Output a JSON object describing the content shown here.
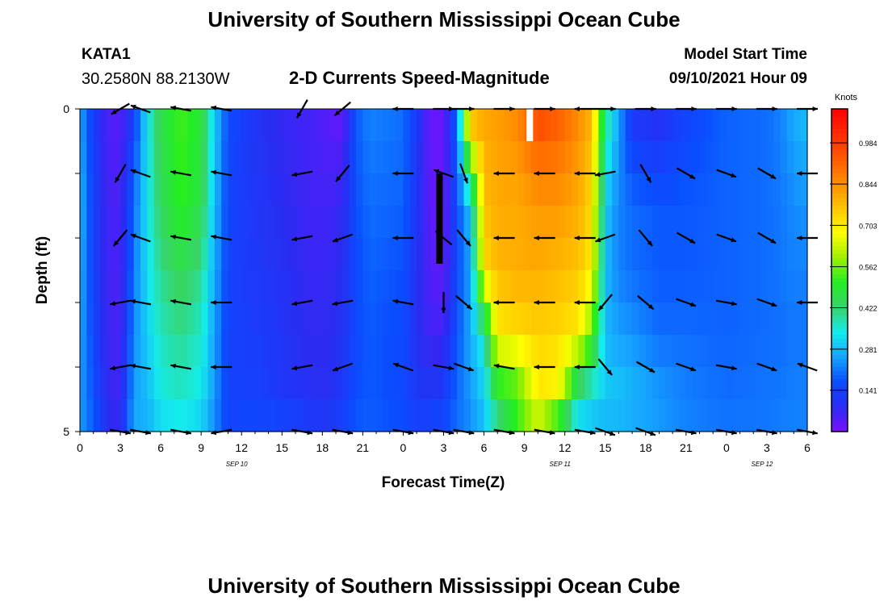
{
  "titles": {
    "top": "University of Southern Mississippi Ocean Cube",
    "bottom": "University of Southern Mississippi Ocean Cube"
  },
  "station": {
    "id": "KATA1",
    "location": "30.2580N  88.2130W"
  },
  "model_start": {
    "label": "Model Start Time",
    "value": "09/10/2021 Hour 09"
  },
  "chart_data": {
    "type": "heatmap",
    "title": "2-D Currents Speed-Magnitude",
    "xlabel": "Forecast Time(Z)",
    "ylabel": "Depth (ft)",
    "x_range_hours": [
      0,
      54
    ],
    "y_range_ft": [
      0,
      5
    ],
    "x_ticks": [
      {
        "hour": 0,
        "label": "0"
      },
      {
        "hour": 3,
        "label": "3"
      },
      {
        "hour": 6,
        "label": "6"
      },
      {
        "hour": 9,
        "label": "9"
      },
      {
        "hour": 12,
        "label": "12"
      },
      {
        "hour": 15,
        "label": "15"
      },
      {
        "hour": 18,
        "label": "18"
      },
      {
        "hour": 21,
        "label": "21"
      },
      {
        "hour": 24,
        "label": "0"
      },
      {
        "hour": 27,
        "label": "3"
      },
      {
        "hour": 30,
        "label": "6"
      },
      {
        "hour": 33,
        "label": "9"
      },
      {
        "hour": 36,
        "label": "12"
      },
      {
        "hour": 39,
        "label": "15"
      },
      {
        "hour": 42,
        "label": "18"
      },
      {
        "hour": 45,
        "label": "21"
      },
      {
        "hour": 48,
        "label": "0"
      },
      {
        "hour": 51,
        "label": "3"
      },
      {
        "hour": 54,
        "label": "6"
      }
    ],
    "date_labels": [
      {
        "hour": 12,
        "label": "SEP 10"
      },
      {
        "hour": 36,
        "label": "SEP 11"
      },
      {
        "hour": 51,
        "label": "SEP 12"
      }
    ],
    "y_ticks": [
      {
        "depth": 0,
        "label": "0"
      },
      {
        "depth": 5,
        "label": "5"
      }
    ],
    "depth_levels": [
      0.25,
      0.75,
      1.25,
      1.75,
      2.25,
      2.75,
      3.25,
      3.75,
      4.25,
      4.75
    ],
    "speed_profile": [
      [
        0,
        0.26,
        0.28,
        0.27,
        0.26,
        0.25,
        0.25
      ],
      [
        1,
        0.13,
        0.14,
        0.14,
        0.15,
        0.17,
        0.19
      ],
      [
        2,
        0.05,
        0.06,
        0.06,
        0.07,
        0.08,
        0.1
      ],
      [
        3,
        0.04,
        0.05,
        0.05,
        0.05,
        0.06,
        0.08
      ],
      [
        4,
        0.14,
        0.2,
        0.21,
        0.23,
        0.25,
        0.27
      ],
      [
        5,
        0.33,
        0.33,
        0.32,
        0.3,
        0.28,
        0.26
      ],
      [
        6,
        0.46,
        0.44,
        0.4,
        0.37,
        0.34,
        0.31
      ],
      [
        7.5,
        0.53,
        0.52,
        0.45,
        0.4,
        0.36,
        0.32
      ],
      [
        9,
        0.48,
        0.46,
        0.4,
        0.36,
        0.33,
        0.3
      ],
      [
        10,
        0.3,
        0.28,
        0.26,
        0.25,
        0.24,
        0.22
      ],
      [
        11,
        0.16,
        0.15,
        0.15,
        0.14,
        0.14,
        0.15
      ],
      [
        12.5,
        0.12,
        0.12,
        0.12,
        0.13,
        0.14,
        0.17
      ],
      [
        14,
        0.09,
        0.1,
        0.11,
        0.12,
        0.13,
        0.17
      ],
      [
        15.5,
        0.07,
        0.08,
        0.09,
        0.1,
        0.11,
        0.16
      ],
      [
        17,
        0.06,
        0.06,
        0.07,
        0.08,
        0.1,
        0.14
      ],
      [
        18.5,
        0.04,
        0.06,
        0.07,
        0.08,
        0.09,
        0.13
      ],
      [
        19.5,
        0.03,
        0.08,
        0.09,
        0.1,
        0.12,
        0.15
      ],
      [
        20.5,
        0.18,
        0.17,
        0.16,
        0.16,
        0.17,
        0.18
      ],
      [
        21.5,
        0.22,
        0.2,
        0.19,
        0.18,
        0.18,
        0.19
      ],
      [
        24,
        0.2,
        0.19,
        0.17,
        0.16,
        0.16,
        0.17
      ],
      [
        25,
        0.12,
        0.11,
        0.1,
        0.09,
        0.12,
        0.15
      ],
      [
        26,
        0.02,
        0.03,
        0.04,
        0.06,
        0.12,
        0.15
      ],
      [
        27,
        0.02,
        0.02,
        0.03,
        0.06,
        0.13,
        0.17
      ],
      [
        28,
        0.2,
        0.16,
        0.16,
        0.17,
        0.2,
        0.2
      ],
      [
        29,
        0.75,
        0.3,
        0.25,
        0.27,
        0.24,
        0.23
      ],
      [
        30,
        0.8,
        0.77,
        0.72,
        0.36,
        0.3,
        0.28
      ],
      [
        31,
        0.82,
        0.8,
        0.78,
        0.7,
        0.45,
        0.38
      ],
      [
        32.5,
        0.85,
        0.8,
        0.8,
        0.72,
        0.5,
        0.55
      ],
      [
        34,
        0.95,
        0.83,
        0.8,
        0.74,
        0.7,
        0.58
      ],
      [
        35.5,
        0.92,
        0.83,
        0.78,
        0.73,
        0.68,
        0.38
      ],
      [
        37,
        0.85,
        0.8,
        0.76,
        0.7,
        0.35,
        0.3
      ],
      [
        38,
        0.78,
        0.72,
        0.7,
        0.55,
        0.32,
        0.28
      ],
      [
        39,
        0.4,
        0.3,
        0.28,
        0.28,
        0.3,
        0.26
      ],
      [
        40,
        0.25,
        0.22,
        0.22,
        0.25,
        0.3,
        0.26
      ],
      [
        41,
        0.12,
        0.2,
        0.2,
        0.24,
        0.28,
        0.25
      ],
      [
        43,
        0.1,
        0.18,
        0.18,
        0.2,
        0.25,
        0.24
      ],
      [
        45,
        0.15,
        0.18,
        0.18,
        0.2,
        0.22,
        0.22
      ],
      [
        48,
        0.19,
        0.19,
        0.19,
        0.19,
        0.2,
        0.21
      ],
      [
        51,
        0.2,
        0.2,
        0.2,
        0.2,
        0.21,
        0.21
      ],
      [
        52,
        0.22,
        0.21,
        0.21,
        0.2,
        0.21,
        0.22
      ],
      [
        53,
        0.26,
        0.23,
        0.22,
        0.21,
        0.22,
        0.22
      ],
      [
        54,
        0.28,
        0.24,
        0.22,
        0.21,
        0.22,
        0.22
      ]
    ],
    "profile_depths_ft": [
      0.25,
      1.5,
      2.5,
      3.5,
      4.5,
      5
    ],
    "vector_times_hours": [
      3,
      4.5,
      7.5,
      10.5,
      16.5,
      19.5,
      24,
      27,
      28.5,
      31.5,
      34.5,
      37.5,
      39,
      42,
      45,
      48,
      51,
      54
    ],
    "vector_depths_ft": [
      0,
      1,
      2,
      3,
      4,
      5
    ],
    "vector_directions_deg": [
      [
        150,
        200,
        190,
        190,
        120,
        140,
        180,
        0,
        0,
        0,
        0,
        180,
        0,
        0,
        0,
        0,
        0,
        0
      ],
      [
        120,
        200,
        190,
        190,
        170,
        130,
        180,
        200,
        70,
        180,
        180,
        180,
        170,
        60,
        30,
        20,
        30,
        180
      ],
      [
        130,
        200,
        190,
        190,
        170,
        160,
        180,
        220,
        50,
        180,
        180,
        180,
        160,
        50,
        30,
        20,
        30,
        180
      ],
      [
        170,
        190,
        190,
        180,
        170,
        170,
        190,
        90,
        40,
        180,
        180,
        180,
        130,
        40,
        20,
        10,
        20,
        180
      ],
      [
        170,
        190,
        190,
        180,
        170,
        160,
        200,
        10,
        20,
        190,
        180,
        180,
        50,
        30,
        20,
        10,
        20,
        200
      ],
      [
        10,
        10,
        10,
        170,
        10,
        10,
        10,
        10,
        10,
        10,
        10,
        10,
        20,
        20,
        10,
        10,
        10,
        10
      ]
    ],
    "vector_scale_knots": 0.5,
    "markers": [
      {
        "type": "black-bar",
        "hour": 26.7,
        "depth_from": 1.0,
        "depth_to": 2.4
      },
      {
        "type": "white-bar",
        "hour": 33.4,
        "depth_from": 0.0,
        "depth_to": 0.5
      }
    ],
    "colorbar": {
      "label": "Knots",
      "range": [
        0,
        1.1
      ],
      "ticks": [
        0.141,
        0.281,
        0.422,
        0.562,
        0.703,
        0.844,
        0.984
      ],
      "tick_labels": [
        "0.141",
        "0.281",
        "0.422",
        "0.562",
        "0.703",
        "0.844",
        "0.984"
      ],
      "colors": [
        "#7a10ff",
        "#2a2cf2",
        "#0a4dff",
        "#16a4ff",
        "#14ecec",
        "#38d46a",
        "#22ee22",
        "#a0f000",
        "#ffff00",
        "#ffc400",
        "#ff8e00",
        "#ff5a00",
        "#ff2a00",
        "#ff0000"
      ]
    }
  }
}
